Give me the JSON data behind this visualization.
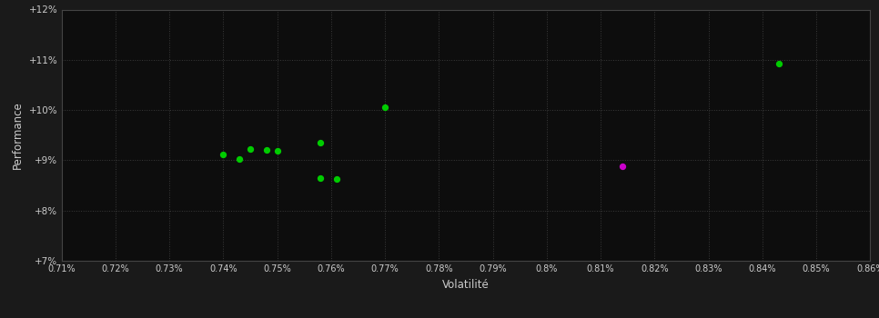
{
  "background_color": "#1a1a1a",
  "plot_bg_color": "#0d0d0d",
  "grid_color": "#3a3a3a",
  "text_color": "#cccccc",
  "xlabel": "Volatilité",
  "ylabel": "Performance",
  "xlim": [
    0.0071,
    0.0086
  ],
  "ylim": [
    0.07,
    0.12
  ],
  "xtick_values": [
    0.0071,
    0.0072,
    0.0073,
    0.0074,
    0.0075,
    0.0076,
    0.0077,
    0.0078,
    0.0079,
    0.008,
    0.0081,
    0.0082,
    0.0083,
    0.0084,
    0.0085,
    0.0086
  ],
  "ytick_values": [
    0.07,
    0.08,
    0.09,
    0.1,
    0.11,
    0.12
  ],
  "green_points": [
    [
      0.0074,
      0.0912
    ],
    [
      0.00745,
      0.0922
    ],
    [
      0.00748,
      0.092
    ],
    [
      0.0075,
      0.0918
    ],
    [
      0.00743,
      0.0903
    ],
    [
      0.00758,
      0.0935
    ],
    [
      0.0077,
      0.1005
    ],
    [
      0.00758,
      0.0865
    ],
    [
      0.00761,
      0.0862
    ],
    [
      0.00843,
      0.1093
    ]
  ],
  "magenta_points": [
    [
      0.00814,
      0.0888
    ]
  ],
  "green_color": "#00cc00",
  "magenta_color": "#cc00cc",
  "point_size": 18,
  "figsize": [
    9.66,
    3.5
  ],
  "dpi": 100
}
